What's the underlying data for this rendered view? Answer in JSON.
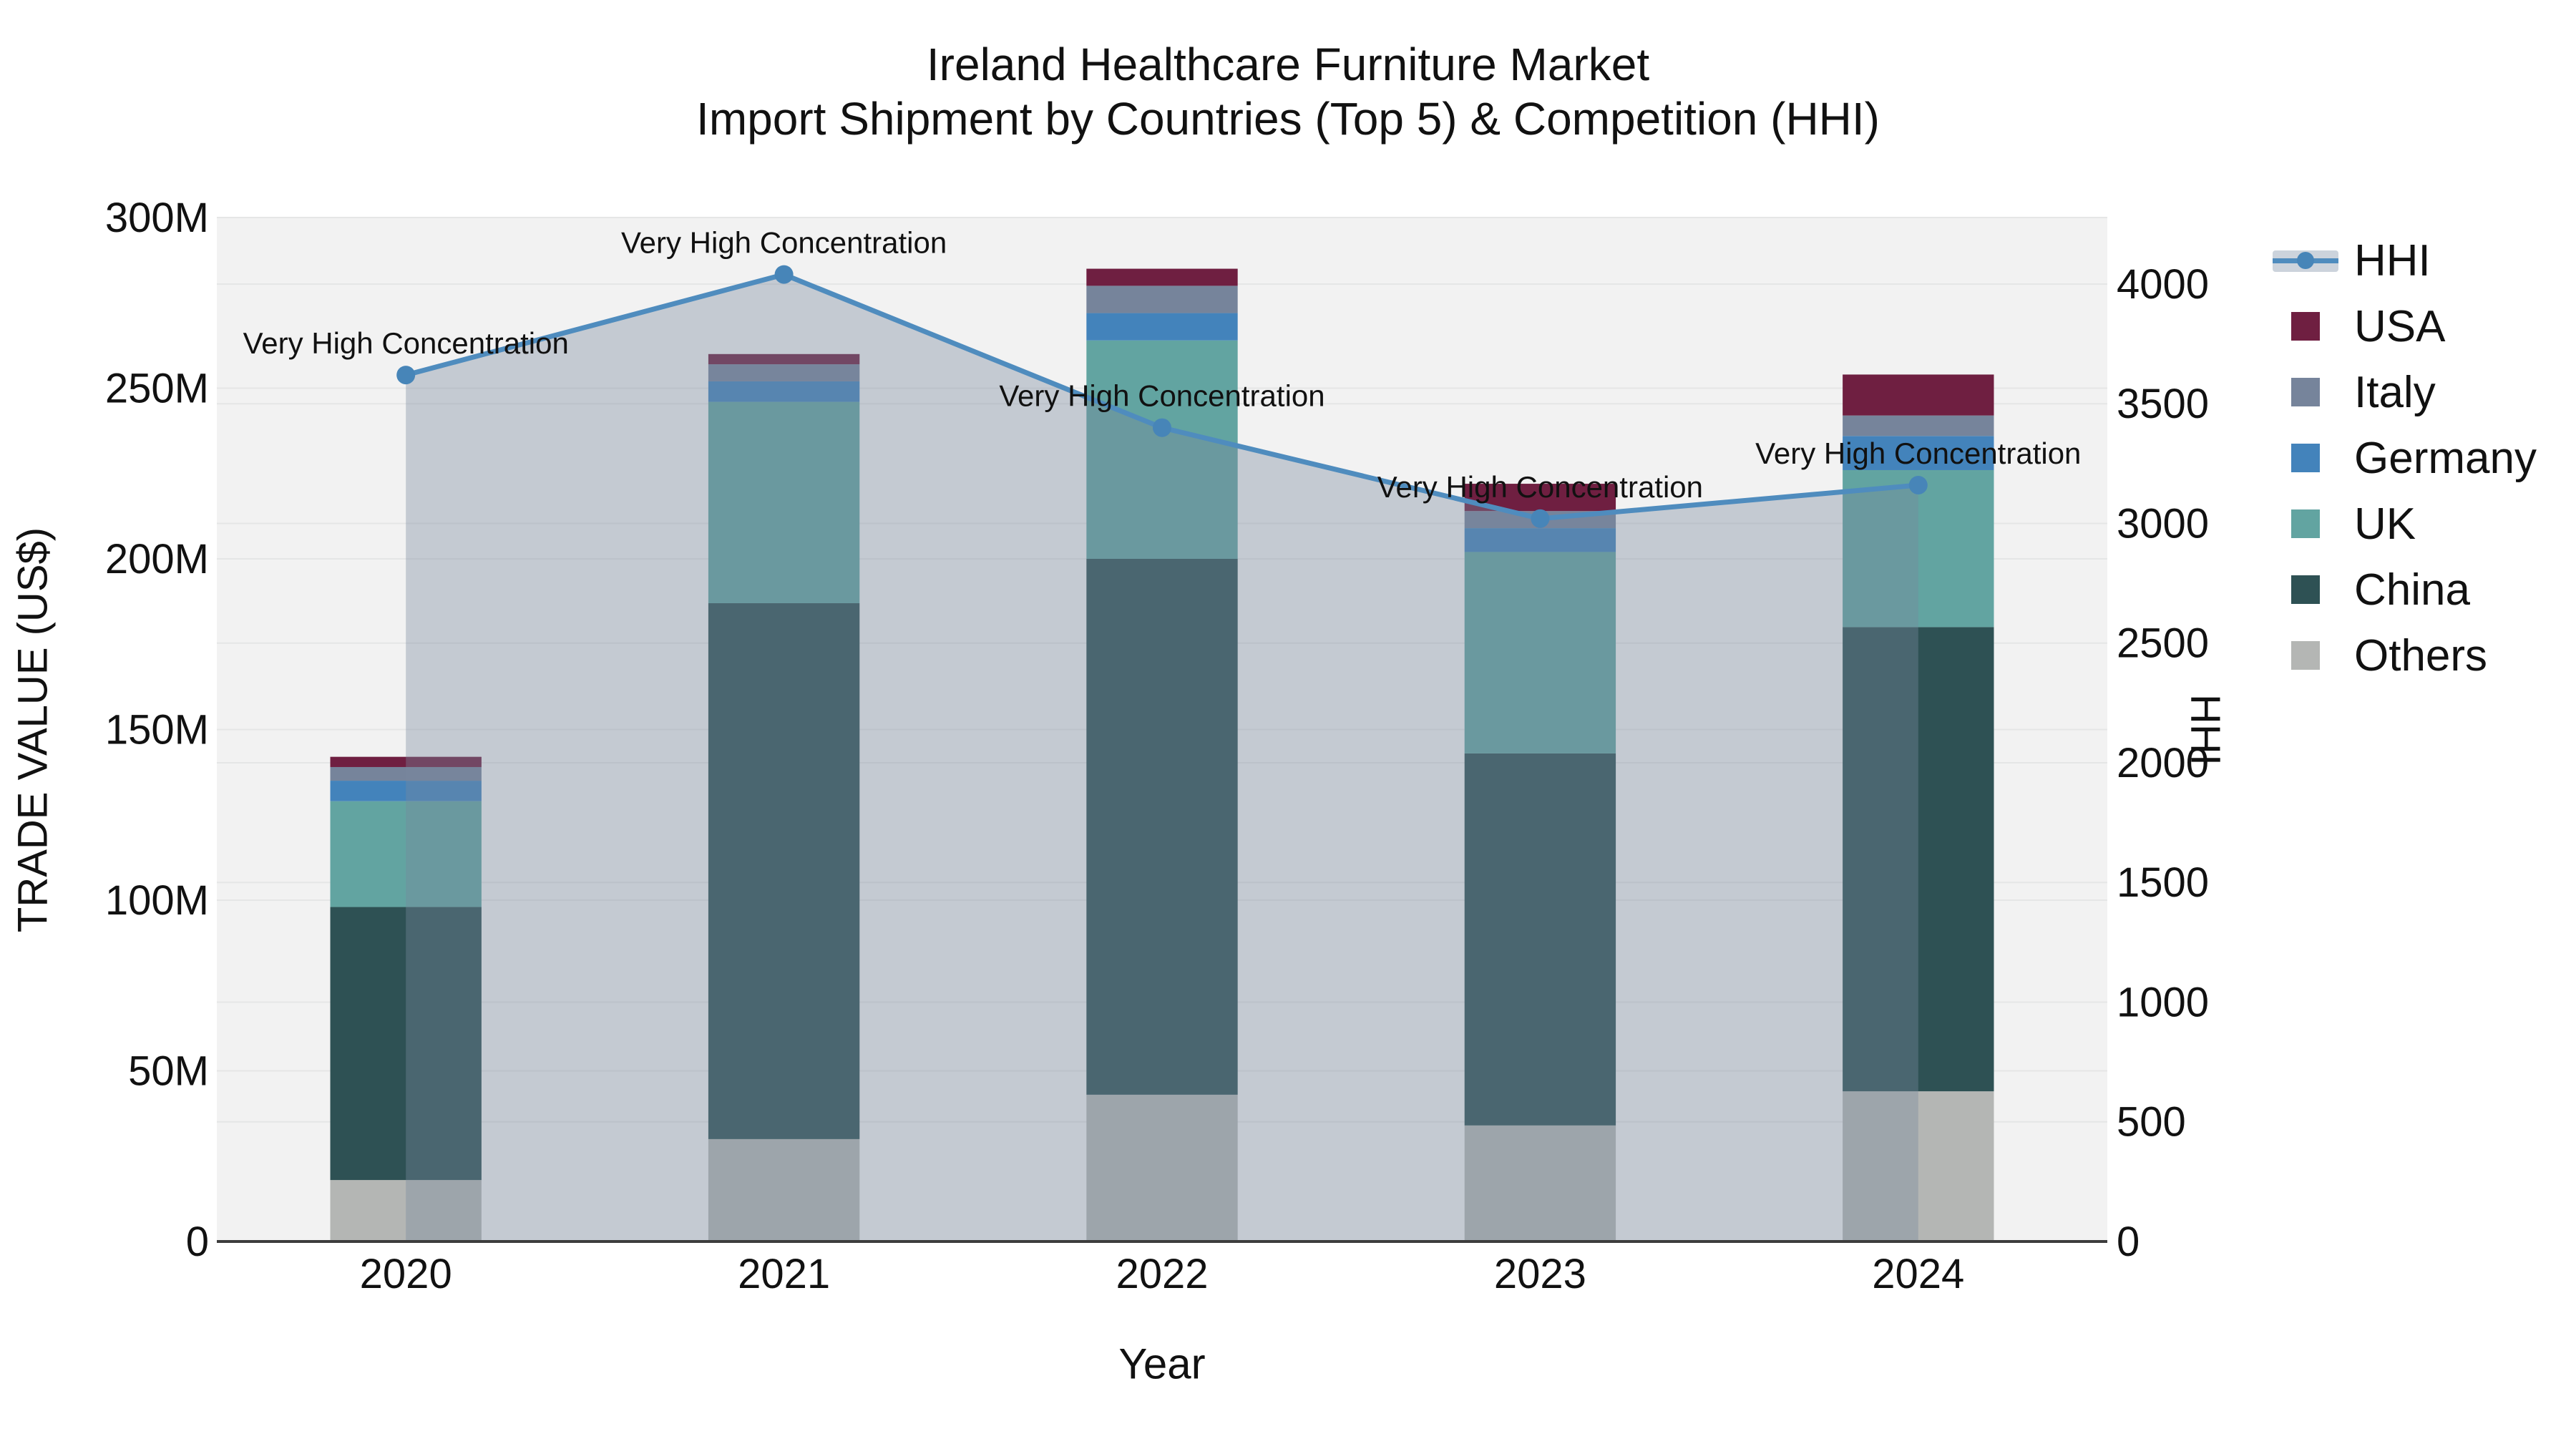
{
  "title": {
    "line1": "Ireland Healthcare Furniture Market",
    "line2": "Import Shipment by Countries (Top 5) & Competition (HHI)"
  },
  "axes": {
    "left": {
      "title": "TRADE VALUE (US$)",
      "tick_values": [
        0,
        50,
        100,
        150,
        200,
        250,
        300
      ],
      "tick_labels": [
        "0",
        "50M",
        "100M",
        "150M",
        "200M",
        "250M",
        "300M"
      ]
    },
    "right": {
      "title": "HHI",
      "tick_values": [
        0,
        500,
        1000,
        1500,
        2000,
        2500,
        3000,
        3500,
        4000
      ],
      "tick_labels": [
        "0",
        "500",
        "1000",
        "1500",
        "2000",
        "2500",
        "3000",
        "3500",
        "4000"
      ]
    },
    "bottom": {
      "title": "Year"
    }
  },
  "legend": {
    "items": [
      {
        "label": "HHI",
        "type": "line",
        "color": "#4f8cbe",
        "marker_color": "#4785b8",
        "band_color": "#ccd3dc"
      },
      {
        "label": "USA",
        "type": "swatch",
        "color": "#6f1f41"
      },
      {
        "label": "Italy",
        "type": "swatch",
        "color": "#76849b"
      },
      {
        "label": "Germany",
        "type": "swatch",
        "color": "#4383bb"
      },
      {
        "label": "UK",
        "type": "swatch",
        "color": "#62a4a1"
      },
      {
        "label": "China",
        "type": "swatch",
        "color": "#2e5154"
      },
      {
        "label": "Others",
        "type": "swatch",
        "color": "#b4b6b4"
      }
    ]
  },
  "chart_data": {
    "type": "bar+line",
    "title": "Ireland Healthcare Furniture Market — Import Shipment by Countries (Top 5) & Competition (HHI)",
    "categories": [
      "2020",
      "2021",
      "2022",
      "2023",
      "2024"
    ],
    "bar_unit": "M US$",
    "series": [
      {
        "name": "Others",
        "color": "#b4b6b4",
        "values": [
          18,
          30,
          43,
          34,
          44
        ]
      },
      {
        "name": "China",
        "color": "#2e5154",
        "values": [
          80,
          157,
          157,
          109,
          136
        ]
      },
      {
        "name": "UK",
        "color": "#62a4a1",
        "values": [
          31,
          59,
          64,
          59,
          46
        ]
      },
      {
        "name": "Germany",
        "color": "#4383bb",
        "values": [
          6,
          6,
          8,
          7,
          10
        ]
      },
      {
        "name": "Italy",
        "color": "#76849b",
        "values": [
          4,
          5,
          8,
          5,
          6
        ]
      },
      {
        "name": "USA",
        "color": "#6f1f41",
        "values": [
          3,
          3,
          5,
          8,
          12
        ]
      }
    ],
    "bar_totals": [
      142,
      260,
      285,
      222,
      254
    ],
    "hhi": {
      "name": "HHI",
      "values": [
        3620,
        4040,
        3400,
        3020,
        3160
      ],
      "line_color": "#4f8cbe",
      "marker_color": "#4785b8",
      "fill_color": "rgba(120,136,158,0.38)"
    },
    "annotations": [
      "Very High Concentration",
      "Very High Concentration",
      "Very High Concentration",
      "Very High Concentration",
      "Very High Concentration"
    ],
    "xlabel": "Year",
    "ylabel_left": "TRADE VALUE (US$)",
    "ylabel_right": "HHI",
    "ylim_left": [
      0,
      300
    ],
    "ylim_right": [
      0,
      4278
    ],
    "grid": true,
    "legend_position": "right",
    "plot_bg": "#f2f2f2",
    "grid_color": "#e5e6e6",
    "axisline_color": "#3d3d3d",
    "text_color": "#111111"
  }
}
